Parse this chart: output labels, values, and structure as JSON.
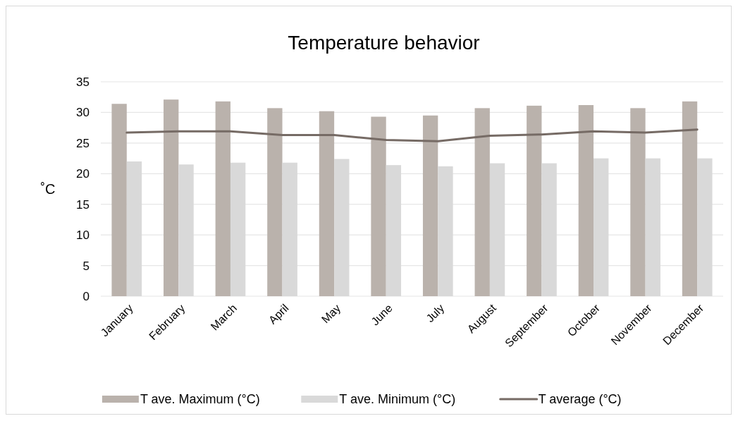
{
  "chart_data": {
    "type": "bar",
    "title": "Temperature behavior",
    "ylabel": "˚C",
    "categories": [
      "January",
      "February",
      "March",
      "April",
      "May",
      "June",
      "July",
      "August",
      "September",
      "October",
      "November",
      "December"
    ],
    "series": [
      {
        "name": "T ave. Maximum (°C)",
        "color": "#bab2ac",
        "values": [
          31.4,
          32.1,
          31.8,
          30.7,
          30.2,
          29.3,
          29.5,
          30.7,
          31.1,
          31.2,
          30.7,
          31.8
        ]
      },
      {
        "name": "T ave. Minimum (°C)",
        "color": "#d9d9d9",
        "values": [
          22.0,
          21.5,
          21.8,
          21.8,
          22.4,
          21.4,
          21.2,
          21.7,
          21.7,
          22.5,
          22.5,
          22.5
        ]
      },
      {
        "name": "T average (°C)",
        "type": "line",
        "color": "#766b65",
        "values": [
          26.7,
          26.9,
          26.9,
          26.3,
          26.3,
          25.5,
          25.3,
          26.2,
          26.4,
          26.9,
          26.7,
          27.2
        ]
      }
    ],
    "ylim": [
      0,
      35
    ],
    "yticks": [
      0,
      5,
      10,
      15,
      20,
      25,
      30,
      35
    ],
    "grid": "y",
    "legend": "bottom"
  }
}
